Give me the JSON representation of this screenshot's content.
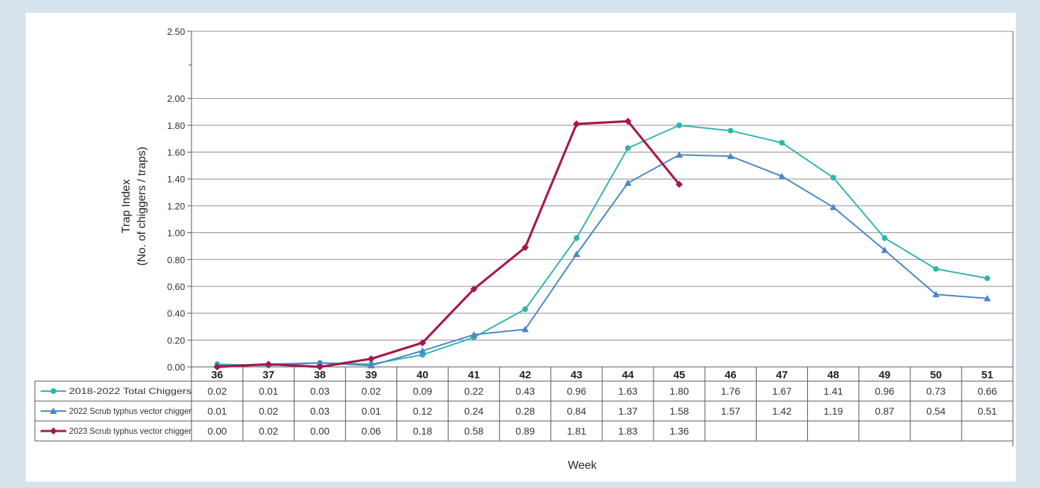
{
  "chart_data": {
    "type": "line",
    "title": "",
    "xlabel": "Week",
    "ylabel_lines": [
      "Trap Index",
      "(No. of chiggers / traps)"
    ],
    "categories": [
      "36",
      "37",
      "38",
      "39",
      "40",
      "41",
      "42",
      "43",
      "44",
      "45",
      "46",
      "47",
      "48",
      "49",
      "50",
      "51"
    ],
    "ylim": [
      0,
      2.5
    ],
    "y_ticks": [
      "0.00",
      "0.20",
      "0.40",
      "0.60",
      "0.80",
      "1.00",
      "1.20",
      "1.40",
      "1.60",
      "1.80",
      "2.00",
      "2.50"
    ],
    "y_tick_values": [
      0,
      0.2,
      0.4,
      0.6,
      0.8,
      1.0,
      1.2,
      1.4,
      1.6,
      1.8,
      2.0,
      2.5
    ],
    "grid": true,
    "legend_placement": "data table below chart",
    "series": [
      {
        "name": "2018-2022 Total Chiggers",
        "color": "#2fb5ad",
        "marker": "circle",
        "values": [
          0.02,
          0.01,
          0.03,
          0.02,
          0.09,
          0.22,
          0.43,
          0.96,
          1.63,
          1.8,
          1.76,
          1.67,
          1.41,
          0.96,
          0.73,
          0.66
        ],
        "labels": [
          "0.02",
          "0.01",
          "0.03",
          "0.02",
          "0.09",
          "0.22",
          "0.43",
          "0.96",
          "1.63",
          "1.80",
          "1.76",
          "1.67",
          "1.41",
          "0.96",
          "0.73",
          "0.66"
        ]
      },
      {
        "name": "2022 Scrub typhus vector chigger",
        "color": "#4a86c8",
        "marker": "triangle",
        "values": [
          0.01,
          0.02,
          0.03,
          0.01,
          0.12,
          0.24,
          0.28,
          0.84,
          1.37,
          1.58,
          1.57,
          1.42,
          1.19,
          0.87,
          0.54,
          0.51
        ],
        "labels": [
          "0.01",
          "0.02",
          "0.03",
          "0.01",
          "0.12",
          "0.24",
          "0.28",
          "0.84",
          "1.37",
          "1.58",
          "1.57",
          "1.42",
          "1.19",
          "0.87",
          "0.54",
          "0.51"
        ]
      },
      {
        "name": "2023 Scrub typhus vector chigger",
        "color": "#a8174a",
        "marker": "diamond",
        "values": [
          0.0,
          0.02,
          0.0,
          0.06,
          0.18,
          0.58,
          0.89,
          1.81,
          1.83,
          1.36,
          null,
          null,
          null,
          null,
          null,
          null
        ],
        "labels": [
          "0.00",
          "0.02",
          "0.00",
          "0.06",
          "0.18",
          "0.58",
          "0.89",
          "1.81",
          "1.83",
          "1.36",
          "",
          "",
          "",
          "",
          "",
          ""
        ]
      }
    ]
  }
}
